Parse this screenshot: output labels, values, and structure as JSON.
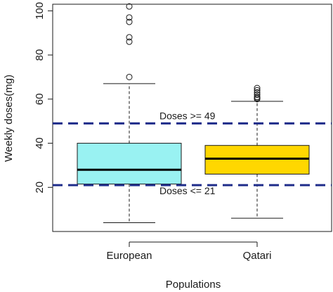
{
  "chart_data": {
    "type": "box",
    "title": "",
    "xlabel": "Populations",
    "ylabel": "Weekly doses(mg)",
    "ylim": [
      0,
      103
    ],
    "yticks": [
      20,
      40,
      60,
      80,
      100
    ],
    "categories": [
      "European",
      "Qatari"
    ],
    "boxes": [
      {
        "name": "European",
        "color": "#99f2f2",
        "whisker_low": 4,
        "q1": 21.5,
        "median": 28,
        "q3": 40,
        "whisker_high": 67,
        "outliers": [
          70,
          86,
          88,
          95,
          97,
          102
        ]
      },
      {
        "name": "Qatari",
        "color": "#ffd700",
        "whisker_low": 6,
        "q1": 26,
        "median": 33,
        "q3": 39,
        "whisker_high": 59,
        "outliers": [
          60,
          60.5,
          61,
          62,
          63,
          64,
          65
        ]
      }
    ],
    "reference_lines": [
      {
        "value": 49,
        "label": "Doses >= 49",
        "color": "#1f2d8a"
      },
      {
        "value": 21,
        "label": "Doses <= 21",
        "color": "#1f2d8a"
      }
    ],
    "grid": false,
    "legend": "none"
  }
}
